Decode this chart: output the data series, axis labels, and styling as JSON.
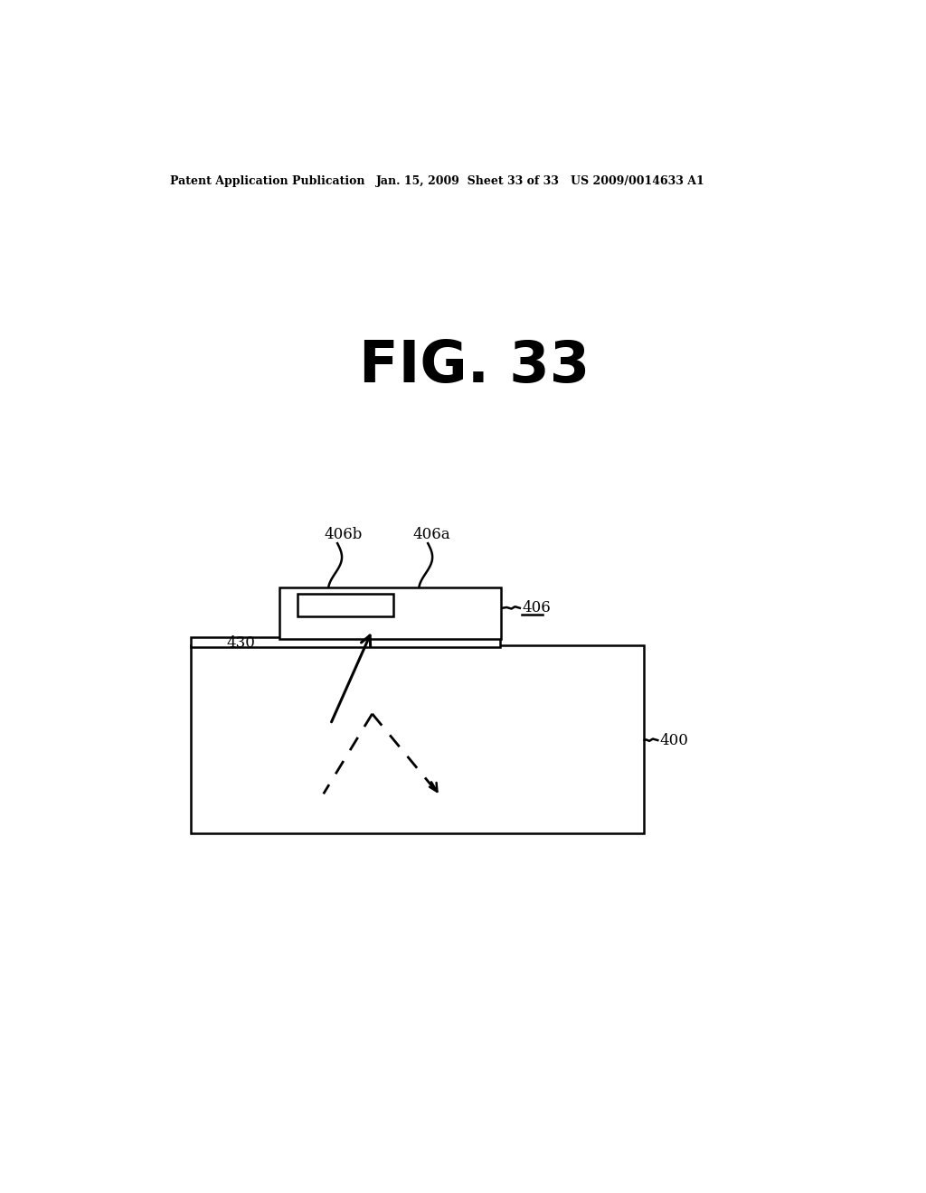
{
  "background_color": "#ffffff",
  "header_left": "Patent Application Publication",
  "header_center": "Jan. 15, 2009  Sheet 33 of 33",
  "header_right": "US 2009/0014633 A1",
  "fig_label": "FIG. 33",
  "label_406b": "406b",
  "label_406a": "406a",
  "label_406": "406",
  "label_430": "430",
  "label_400": "400",
  "line_color": "#000000"
}
